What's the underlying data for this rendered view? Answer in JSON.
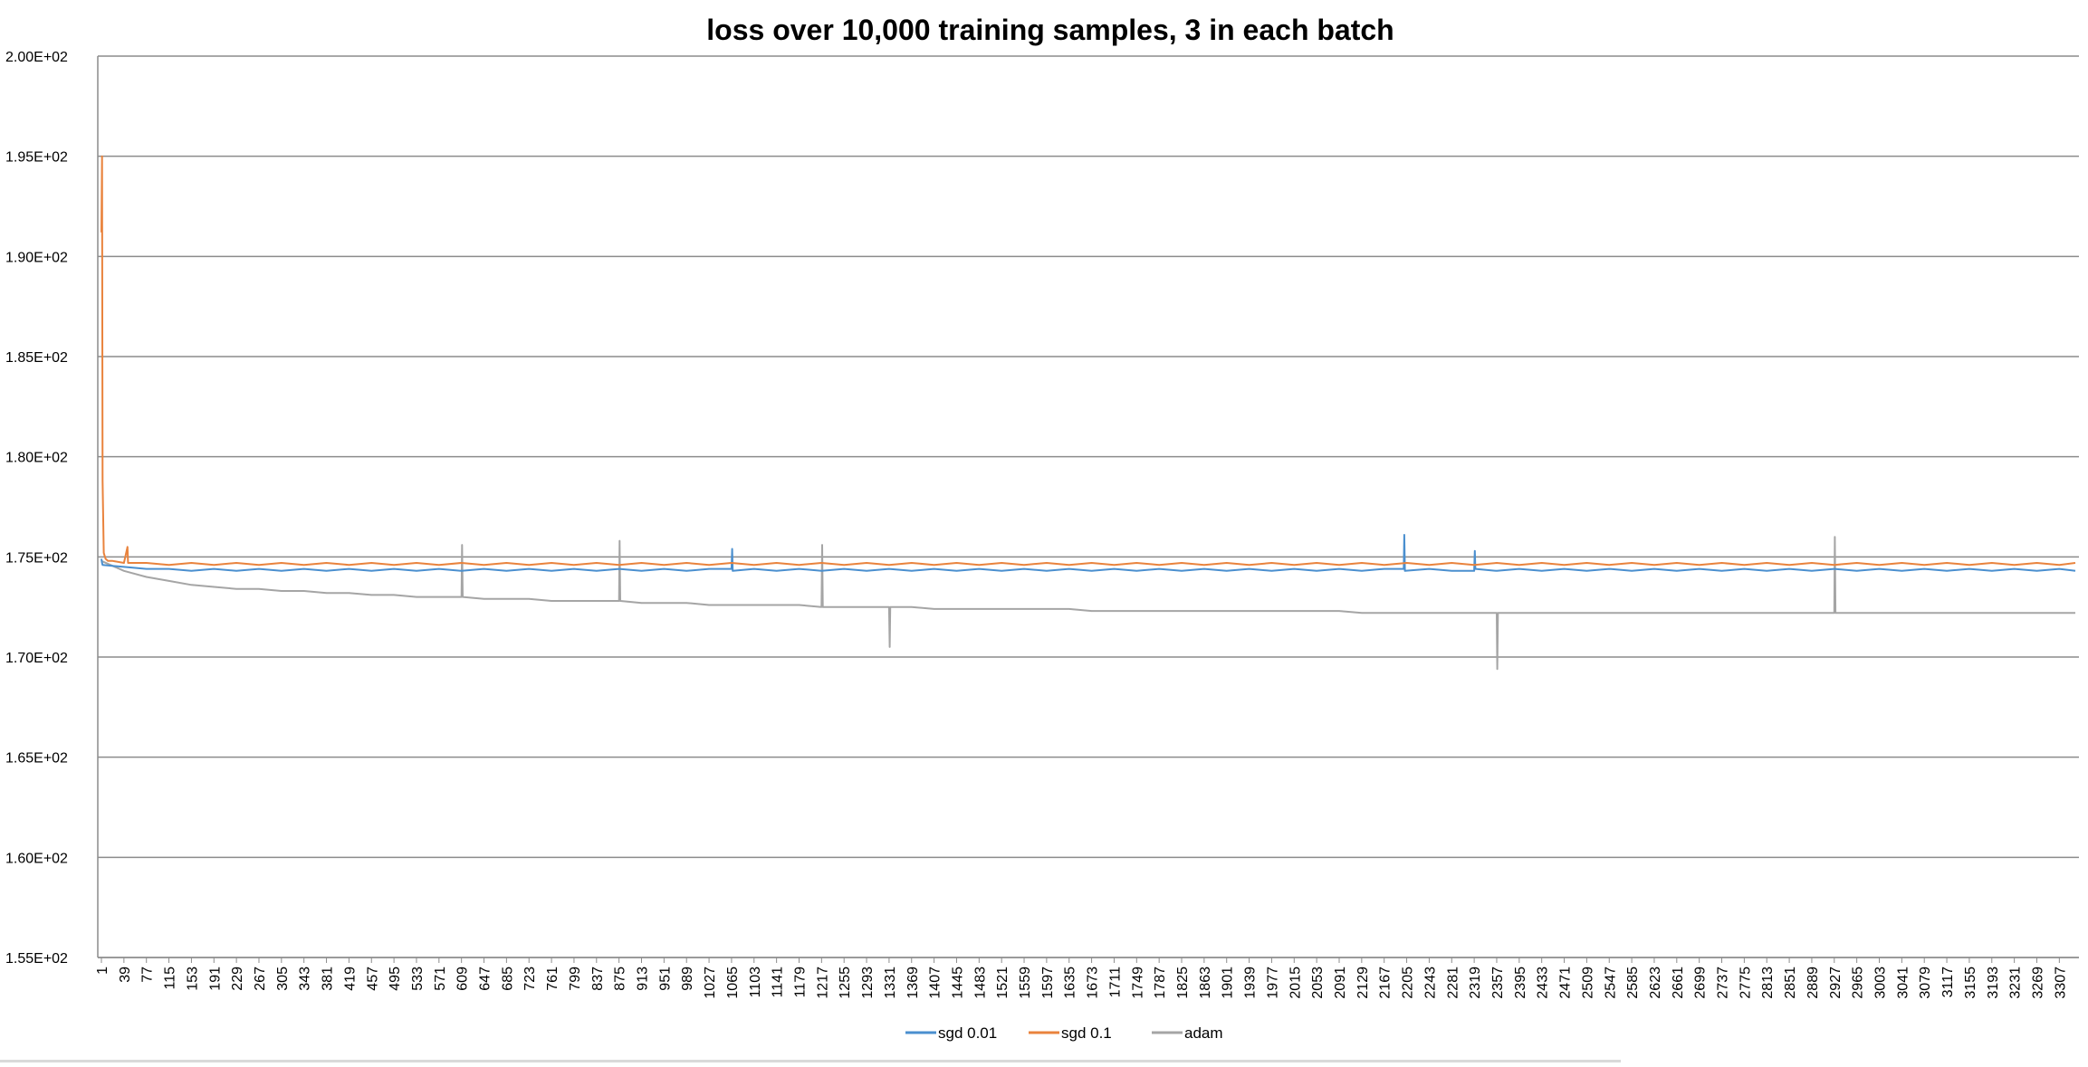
{
  "chart_data": {
    "type": "line",
    "title": "loss over 10,000 training samples, 3 in each batch",
    "xlabel": "",
    "ylabel": "",
    "ylim": [
      155,
      200
    ],
    "xlim": [
      1,
      3334
    ],
    "y_ticks": [
      {
        "value": 200,
        "label": "2.00E+02"
      },
      {
        "value": 195,
        "label": "1.95E+02"
      },
      {
        "value": 190,
        "label": "1.90E+02"
      },
      {
        "value": 185,
        "label": "1.85E+02"
      },
      {
        "value": 180,
        "label": "1.80E+02"
      },
      {
        "value": 175,
        "label": "1.75E+02"
      },
      {
        "value": 170,
        "label": "1.70E+02"
      },
      {
        "value": 165,
        "label": "1.65E+02"
      },
      {
        "value": 160,
        "label": "1.60E+02"
      },
      {
        "value": 155,
        "label": "1.55E+02"
      }
    ],
    "x_ticks": [
      1,
      39,
      77,
      115,
      153,
      191,
      229,
      267,
      305,
      343,
      381,
      419,
      457,
      495,
      533,
      571,
      609,
      647,
      685,
      723,
      761,
      799,
      837,
      875,
      913,
      951,
      989,
      1027,
      1065,
      1103,
      1141,
      1179,
      1217,
      1255,
      1293,
      1331,
      1369,
      1407,
      1445,
      1483,
      1521,
      1559,
      1597,
      1635,
      1673,
      1711,
      1749,
      1787,
      1825,
      1863,
      1901,
      1939,
      1977,
      2015,
      2053,
      2091,
      2129,
      2167,
      2205,
      2243,
      2281,
      2319,
      2357,
      2395,
      2433,
      2471,
      2509,
      2547,
      2585,
      2623,
      2661,
      2699,
      2737,
      2775,
      2813,
      2851,
      2889,
      2927,
      2965,
      3003,
      3041,
      3079,
      3117,
      3155,
      3193,
      3231,
      3269,
      3307
    ],
    "grid": true,
    "legend": "bottom-center",
    "series": [
      {
        "name": "sgd 0.01",
        "color": "#4a8fcf",
        "x": [
          1,
          2,
          3,
          39,
          77,
          115,
          153,
          191,
          229,
          267,
          305,
          343,
          381,
          419,
          457,
          495,
          533,
          571,
          609,
          647,
          685,
          723,
          761,
          799,
          837,
          875,
          913,
          951,
          989,
          1027,
          1065,
          1066,
          1067,
          1103,
          1141,
          1179,
          1217,
          1255,
          1293,
          1331,
          1369,
          1407,
          1445,
          1483,
          1521,
          1559,
          1597,
          1635,
          1673,
          1711,
          1749,
          1787,
          1825,
          1863,
          1901,
          1939,
          1977,
          2015,
          2053,
          2091,
          2129,
          2167,
          2200,
          2201,
          2202,
          2243,
          2281,
          2319,
          2320,
          2321,
          2357,
          2395,
          2433,
          2471,
          2509,
          2547,
          2585,
          2623,
          2661,
          2699,
          2737,
          2775,
          2813,
          2851,
          2889,
          2927,
          2965,
          3003,
          3041,
          3079,
          3117,
          3155,
          3193,
          3231,
          3269,
          3307,
          3334
        ],
        "y": [
          174.9,
          174.7,
          174.6,
          174.5,
          174.4,
          174.4,
          174.3,
          174.4,
          174.3,
          174.4,
          174.3,
          174.4,
          174.3,
          174.4,
          174.3,
          174.4,
          174.3,
          174.4,
          174.3,
          174.4,
          174.3,
          174.4,
          174.3,
          174.4,
          174.3,
          174.4,
          174.3,
          174.4,
          174.3,
          174.4,
          174.4,
          175.4,
          174.3,
          174.4,
          174.3,
          174.4,
          174.3,
          174.4,
          174.3,
          174.4,
          174.3,
          174.4,
          174.3,
          174.4,
          174.3,
          174.4,
          174.3,
          174.4,
          174.3,
          174.4,
          174.3,
          174.4,
          174.3,
          174.4,
          174.3,
          174.4,
          174.3,
          174.4,
          174.3,
          174.4,
          174.3,
          174.4,
          174.4,
          176.1,
          174.3,
          174.4,
          174.3,
          174.3,
          175.3,
          174.4,
          174.3,
          174.4,
          174.3,
          174.4,
          174.3,
          174.4,
          174.3,
          174.4,
          174.3,
          174.4,
          174.3,
          174.4,
          174.3,
          174.4,
          174.3,
          174.4,
          174.3,
          174.4,
          174.3,
          174.4,
          174.3,
          174.4,
          174.3,
          174.4,
          174.3,
          174.4,
          174.3
        ]
      },
      {
        "name": "sgd 0.1",
        "color": "#e9833d",
        "x": [
          1,
          2,
          3,
          5,
          8,
          12,
          20,
          39,
          45,
          46,
          47,
          77,
          115,
          153,
          191,
          229,
          267,
          305,
          343,
          381,
          419,
          457,
          495,
          533,
          571,
          609,
          647,
          685,
          723,
          761,
          799,
          837,
          875,
          913,
          951,
          989,
          1027,
          1065,
          1103,
          1141,
          1179,
          1217,
          1255,
          1293,
          1331,
          1369,
          1407,
          1445,
          1483,
          1521,
          1559,
          1597,
          1635,
          1673,
          1711,
          1749,
          1787,
          1825,
          1863,
          1901,
          1939,
          1977,
          2015,
          2053,
          2091,
          2129,
          2167,
          2205,
          2243,
          2281,
          2319,
          2357,
          2395,
          2433,
          2471,
          2509,
          2547,
          2585,
          2623,
          2661,
          2699,
          2737,
          2775,
          2813,
          2851,
          2889,
          2927,
          2965,
          3003,
          3041,
          3079,
          3117,
          3155,
          3193,
          3231,
          3269,
          3307,
          3334
        ],
        "y": [
          191.2,
          195.0,
          178.8,
          175.2,
          174.9,
          174.8,
          174.8,
          174.7,
          175.5,
          174.7,
          174.7,
          174.7,
          174.6,
          174.7,
          174.6,
          174.7,
          174.6,
          174.7,
          174.6,
          174.7,
          174.6,
          174.7,
          174.6,
          174.7,
          174.6,
          174.7,
          174.6,
          174.7,
          174.6,
          174.7,
          174.6,
          174.7,
          174.6,
          174.7,
          174.6,
          174.7,
          174.6,
          174.7,
          174.6,
          174.7,
          174.6,
          174.7,
          174.6,
          174.7,
          174.6,
          174.7,
          174.6,
          174.7,
          174.6,
          174.7,
          174.6,
          174.7,
          174.6,
          174.7,
          174.6,
          174.7,
          174.6,
          174.7,
          174.6,
          174.7,
          174.6,
          174.7,
          174.6,
          174.7,
          174.6,
          174.7,
          174.6,
          174.7,
          174.6,
          174.7,
          174.6,
          174.7,
          174.6,
          174.7,
          174.6,
          174.7,
          174.6,
          174.7,
          174.6,
          174.7,
          174.6,
          174.7,
          174.6,
          174.7,
          174.6,
          174.7,
          174.6,
          174.7,
          174.6,
          174.7,
          174.6,
          174.7,
          174.6,
          174.7,
          174.6,
          174.7,
          174.6,
          174.7
        ]
      },
      {
        "name": "adam",
        "color": "#a5a5a5",
        "x": [
          1,
          39,
          77,
          115,
          153,
          191,
          229,
          267,
          305,
          343,
          381,
          419,
          457,
          495,
          533,
          571,
          609,
          610,
          611,
          647,
          685,
          723,
          761,
          799,
          837,
          875,
          876,
          877,
          913,
          951,
          989,
          1027,
          1065,
          1103,
          1141,
          1179,
          1217,
          1218,
          1219,
          1255,
          1293,
          1331,
          1332,
          1333,
          1369,
          1407,
          1445,
          1483,
          1521,
          1559,
          1597,
          1635,
          1673,
          1711,
          1749,
          1787,
          1825,
          1863,
          1901,
          1939,
          1977,
          2015,
          2053,
          2091,
          2129,
          2167,
          2205,
          2243,
          2281,
          2319,
          2357,
          2358,
          2359,
          2395,
          2433,
          2471,
          2509,
          2547,
          2585,
          2623,
          2661,
          2699,
          2737,
          2775,
          2813,
          2851,
          2889,
          2927,
          2928,
          2929,
          2965,
          3003,
          3041,
          3079,
          3117,
          3155,
          3193,
          3231,
          3269,
          3307,
          3334
        ],
        "y": [
          174.8,
          174.3,
          174.0,
          173.8,
          173.6,
          173.5,
          173.4,
          173.4,
          173.3,
          173.3,
          173.2,
          173.2,
          173.1,
          173.1,
          173.0,
          173.0,
          173.0,
          175.6,
          173.0,
          172.9,
          172.9,
          172.9,
          172.8,
          172.8,
          172.8,
          172.8,
          175.8,
          172.8,
          172.7,
          172.7,
          172.7,
          172.6,
          172.6,
          172.6,
          172.6,
          172.6,
          172.5,
          175.6,
          172.5,
          172.5,
          172.5,
          172.5,
          170.5,
          172.5,
          172.5,
          172.4,
          172.4,
          172.4,
          172.4,
          172.4,
          172.4,
          172.4,
          172.3,
          172.3,
          172.3,
          172.3,
          172.3,
          172.3,
          172.3,
          172.3,
          172.3,
          172.3,
          172.3,
          172.3,
          172.2,
          172.2,
          172.2,
          172.2,
          172.2,
          172.2,
          172.2,
          169.4,
          172.2,
          172.2,
          172.2,
          172.2,
          172.2,
          172.2,
          172.2,
          172.2,
          172.2,
          172.2,
          172.2,
          172.2,
          172.2,
          172.2,
          172.2,
          172.2,
          176.0,
          172.2,
          172.2,
          172.2,
          172.2,
          172.2,
          172.2,
          172.2,
          172.2,
          172.2,
          172.2,
          172.2,
          172.2
        ]
      }
    ]
  }
}
